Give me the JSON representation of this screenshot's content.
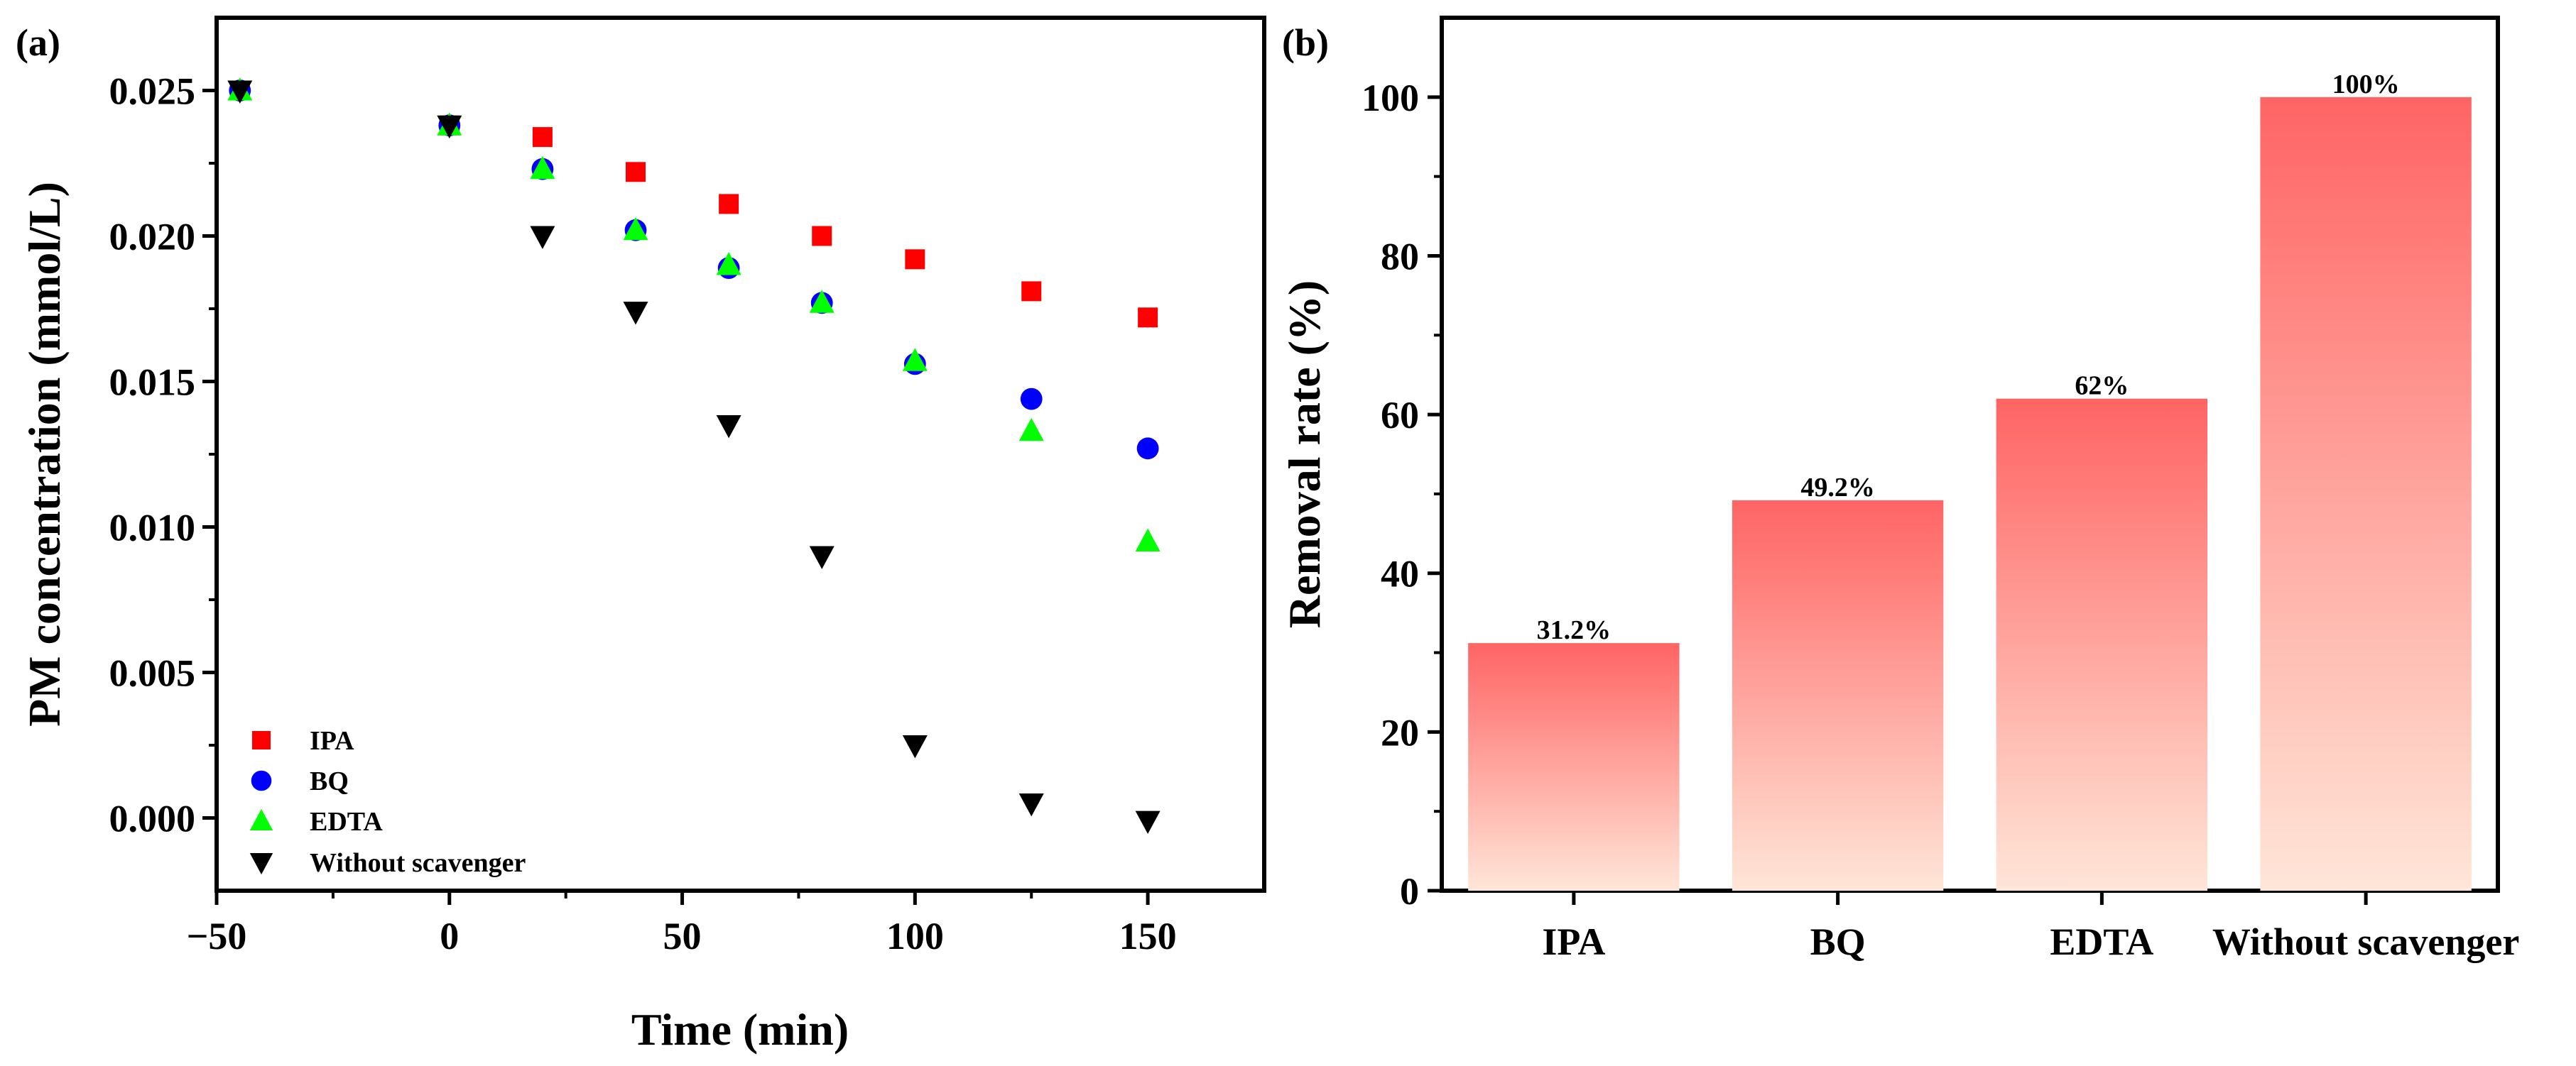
{
  "chart_data": [
    {
      "panel": "(a)",
      "type": "scatter",
      "xlabel": "Time (min)",
      "ylabel": "PM concentration (mmol/L)",
      "xlim": [
        -50,
        175
      ],
      "ylim": [
        -0.0025,
        0.0275
      ],
      "xticks": [
        -50,
        0,
        50,
        100,
        150
      ],
      "xtick_labels": [
        "−50",
        "0",
        "50",
        "100",
        "150"
      ],
      "yticks": [
        0.0,
        0.005,
        0.01,
        0.015,
        0.02,
        0.025
      ],
      "ytick_labels": [
        "0.000",
        "0.005",
        "0.010",
        "0.015",
        "0.020",
        "0.025"
      ],
      "legend_position": "bottom-left",
      "series": [
        {
          "name": "IPA",
          "marker": "square",
          "color": "#ff0000",
          "x": [
            -45,
            0,
            20,
            40,
            60,
            80,
            100,
            125,
            150
          ],
          "y": [
            0.025,
            0.0238,
            0.0234,
            0.0222,
            0.0211,
            0.02,
            0.0192,
            0.0181,
            0.0172
          ]
        },
        {
          "name": "BQ",
          "marker": "circle",
          "color": "#0000ff",
          "x": [
            -45,
            0,
            20,
            40,
            60,
            80,
            100,
            125,
            150
          ],
          "y": [
            0.025,
            0.0238,
            0.0223,
            0.0202,
            0.0189,
            0.0177,
            0.0156,
            0.0144,
            0.0127
          ]
        },
        {
          "name": "EDTA",
          "marker": "triangle-up",
          "color": "#00ff00",
          "x": [
            -45,
            0,
            20,
            40,
            60,
            80,
            100,
            125,
            150
          ],
          "y": [
            0.025,
            0.0238,
            0.0223,
            0.0202,
            0.019,
            0.0177,
            0.0157,
            0.0133,
            0.0095
          ]
        },
        {
          "name": "Without scavenger",
          "marker": "triangle-down",
          "color": "#000000",
          "x": [
            -45,
            0,
            20,
            40,
            60,
            80,
            100,
            125,
            150
          ],
          "y": [
            0.025,
            0.0238,
            0.02,
            0.0174,
            0.0135,
            0.009,
            0.0025,
            0.0005,
            -0.0001
          ]
        }
      ]
    },
    {
      "panel": "(b)",
      "type": "bar",
      "xlabel": "",
      "ylabel": "Removal rate (%)",
      "ylim": [
        0,
        110
      ],
      "yticks": [
        0,
        20,
        40,
        60,
        80,
        100
      ],
      "ytick_labels": [
        "0",
        "20",
        "40",
        "60",
        "80",
        "100"
      ],
      "categories": [
        "IPA",
        "BQ",
        "EDTA",
        "Without scavenger"
      ],
      "values": [
        31.2,
        49.2,
        62,
        100
      ],
      "value_labels": [
        "31.2%",
        "49.2%",
        "62%",
        "100%"
      ],
      "bar_color_top": "#ff6464",
      "bar_color_bottom": "#ffe6d8"
    }
  ]
}
